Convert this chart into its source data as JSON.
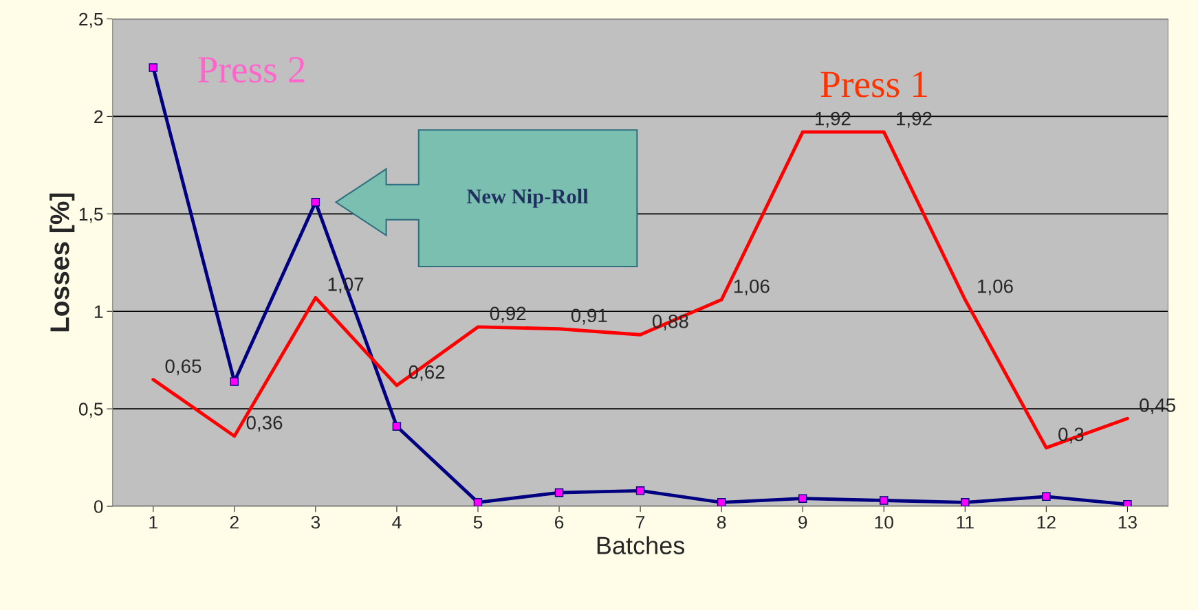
{
  "chart_data": {
    "type": "line",
    "xlabel": "Batches",
    "ylabel": "Losses [%]",
    "categories": [
      "1",
      "2",
      "3",
      "4",
      "5",
      "6",
      "7",
      "8",
      "9",
      "10",
      "11",
      "12",
      "13"
    ],
    "series": [
      {
        "color": "#000080",
        "marker": "square",
        "values": [
          2.25,
          0.64,
          1.56,
          0.41,
          0.02,
          0.07,
          0.08,
          0.02,
          0.04,
          0.03,
          0.02,
          0.05,
          0.01
        ]
      },
      {
        "color": "#ff0000",
        "values": [
          0.65,
          0.36,
          1.07,
          0.62,
          0.92,
          0.91,
          0.88,
          1.06,
          1.92,
          1.92,
          1.06,
          0.3,
          0.45
        ],
        "value_labels": [
          "0,65",
          "0,36",
          "1,07",
          "0,62",
          "0,92",
          "0,91",
          "0,88",
          "1,06",
          "1,92",
          "1,92",
          "1,06",
          "0,3",
          "0,45"
        ]
      }
    ],
    "ylim": [
      0,
      2.5
    ],
    "yticks": [
      0,
      {
        "value": 0.5,
        "label": "0,5"
      },
      1,
      {
        "value": 1.5,
        "label": "1,5"
      },
      2,
      {
        "value": 2.5,
        "label": "2,5"
      }
    ],
    "grid": "y",
    "legend": false,
    "annotations": [
      "Press 2",
      "Press 1",
      "New Nip-Roll"
    ]
  }
}
